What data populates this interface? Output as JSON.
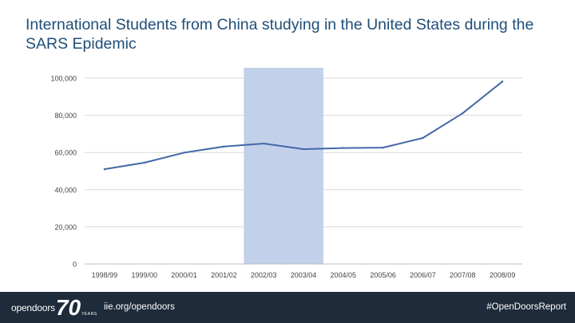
{
  "page": {
    "title": "International Students from China studying in the United States during the SARS Epidemic"
  },
  "footer": {
    "brand_word": "opendoors",
    "brand_anniversary": "70",
    "brand_years": "YEARS",
    "url": "iie.org/opendoors",
    "hashtag": "#OpenDoorsReport"
  },
  "colors": {
    "line": "#4268a8",
    "highlight_band": "#c3d0ea",
    "gridline": "#d9d9d9",
    "title": "#1f4e79",
    "footer_bg": "#1d2b3a"
  },
  "chart_data": {
    "type": "line",
    "title": "",
    "xlabel": "",
    "ylabel": "",
    "categories": [
      "1998/99",
      "1999/00",
      "2000/01",
      "2001/02",
      "2002/03",
      "2003/04",
      "2004/05",
      "2005/06",
      "2006/07",
      "2007/08",
      "2008/09"
    ],
    "series": [
      {
        "values": [
          51000,
          54500,
          59900,
          63200,
          64800,
          61800,
          62400,
          62600,
          67800,
          81100,
          98200
        ]
      }
    ],
    "ylim": [
      0,
      100000
    ],
    "yticks": [
      0,
      20000,
      40000,
      60000,
      80000,
      100000
    ],
    "ytick_labels": [
      "0",
      "20,000",
      "40,000",
      "60,000",
      "80,000",
      "100,000"
    ],
    "highlight_range": [
      "2002/03",
      "2003/04"
    ],
    "grid": "horizontal",
    "legend": "none"
  }
}
